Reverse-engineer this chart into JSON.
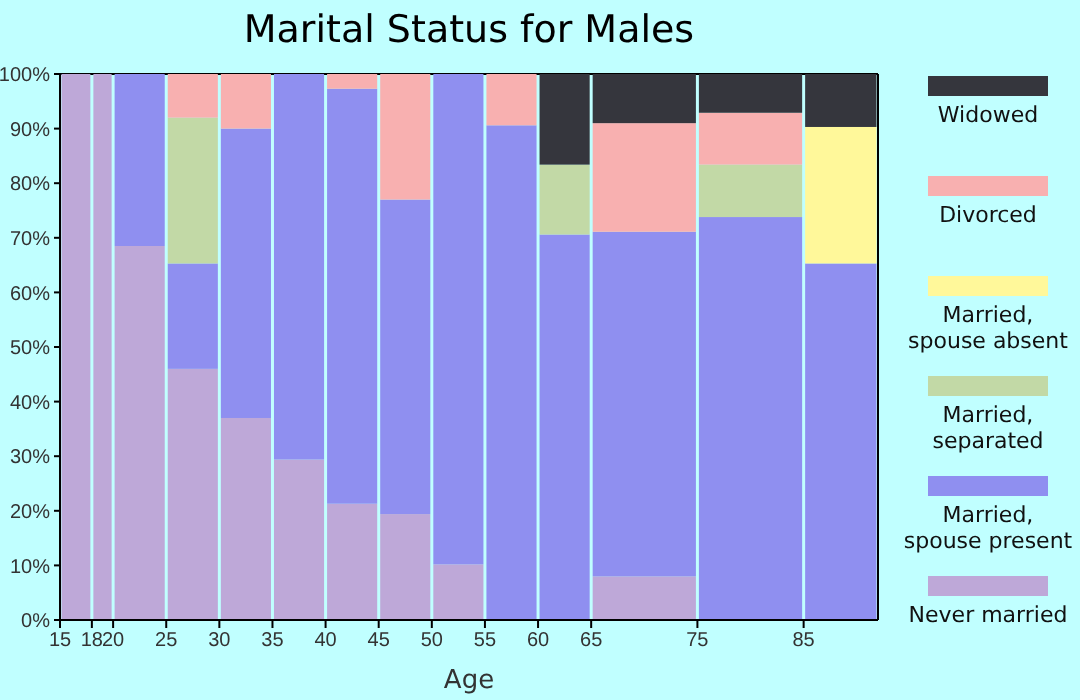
{
  "chart_data": {
    "type": "bar",
    "stacked": true,
    "title": "Marital Status for Males",
    "xlabel": "Age",
    "x": [
      16.5,
      19,
      22.5,
      27.5,
      32.5,
      37.5,
      42.5,
      47.5,
      52.5,
      57.5,
      62.5,
      70,
      80,
      88.5
    ],
    "series": [
      {
        "name": "Never married",
        "color": "#bea8d8",
        "values": [
          100,
          100,
          68.5,
          46,
          37,
          29.4,
          21.3,
          19.4,
          10.2,
          null,
          null,
          8,
          null,
          null
        ]
      },
      {
        "name": "Married,\nspouse present",
        "color": "#8f8ff0",
        "values": [
          null,
          null,
          31.5,
          19.3,
          53,
          70.6,
          76,
          57.6,
          89.8,
          90.6,
          70.6,
          63.1,
          73.8,
          65.3
        ]
      },
      {
        "name": "Married,\nseparated",
        "color": "#c2d9a6",
        "values": [
          null,
          null,
          null,
          26.7,
          null,
          null,
          null,
          null,
          null,
          null,
          12.8,
          null,
          9.6,
          null
        ]
      },
      {
        "name": "Married,\nspouse absent",
        "color": "#fff89a",
        "values": [
          null,
          null,
          null,
          null,
          null,
          null,
          null,
          null,
          null,
          null,
          null,
          null,
          null,
          25
        ]
      },
      {
        "name": "Divorced",
        "color": "#f8b0b0",
        "values": [
          null,
          null,
          null,
          8,
          10,
          null,
          2.7,
          23,
          null,
          9.4,
          null,
          19.9,
          9.5,
          null
        ]
      },
      {
        "name": "Widowed",
        "color": "#35363d",
        "values": [
          null,
          null,
          null,
          null,
          null,
          null,
          null,
          null,
          null,
          null,
          16.6,
          9,
          7.2,
          9.7
        ]
      }
    ],
    "xlim": [
      15,
      92
    ],
    "xticks": [
      15,
      18,
      20,
      25,
      30,
      35,
      40,
      45,
      50,
      55,
      60,
      65,
      75,
      85
    ],
    "ylim": [
      0,
      100
    ],
    "yticks": [
      {
        "value": 0,
        "label": "0%"
      },
      {
        "value": 10,
        "label": "10%"
      },
      {
        "value": 20,
        "label": "20%"
      },
      {
        "value": 30,
        "label": "30%"
      },
      {
        "value": 40,
        "label": "40%"
      },
      {
        "value": 50,
        "label": "50%"
      },
      {
        "value": 60,
        "label": "60%"
      },
      {
        "value": 70,
        "label": "70%"
      },
      {
        "value": 80,
        "label": "80%"
      },
      {
        "value": 90,
        "label": "90%"
      },
      {
        "value": 100,
        "label": "100%"
      }
    ],
    "grid": false,
    "legend": "right"
  }
}
